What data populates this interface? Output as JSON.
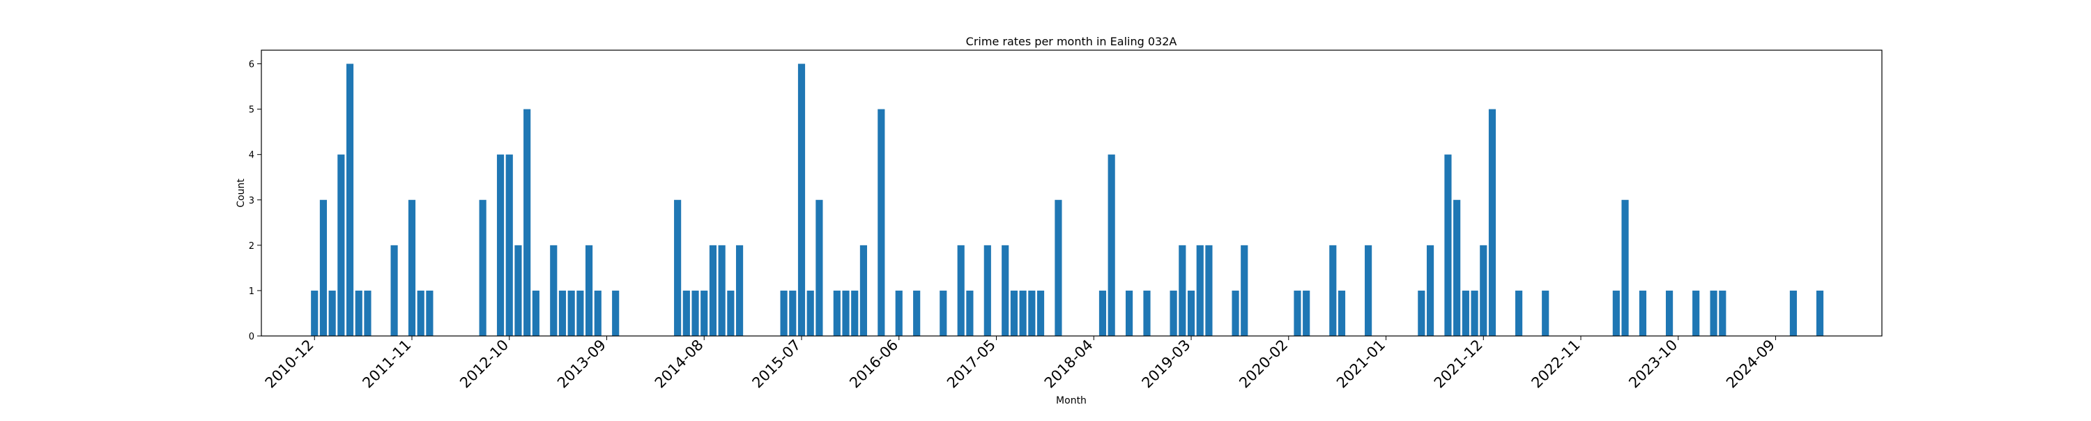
{
  "chart_data": {
    "type": "bar",
    "title": "Crime rates per month in Ealing 032A",
    "xlabel": "Month",
    "ylabel": "Count",
    "ylim": [
      0,
      6.3
    ],
    "yticks": [
      0,
      1,
      2,
      3,
      4,
      5,
      6
    ],
    "xtick_labels": [
      "2010-12",
      "2011-11",
      "2012-10",
      "2013-09",
      "2014-08",
      "2015-07",
      "2016-06",
      "2017-05",
      "2018-04",
      "2019-03",
      "2020-02",
      "2021-01",
      "2021-12",
      "2022-11",
      "2023-10",
      "2024-09"
    ],
    "xtick_rotation": 45,
    "grid": false,
    "bar_color": "#1f77b4",
    "categories": [
      "2010-12",
      "2011-01",
      "2011-02",
      "2011-03",
      "2011-04",
      "2011-05",
      "2011-06",
      "2011-09",
      "2011-11",
      "2011-12",
      "2012-01",
      "2012-07",
      "2012-09",
      "2012-10",
      "2012-11",
      "2012-12",
      "2013-01",
      "2013-03",
      "2013-04",
      "2013-05",
      "2013-06",
      "2013-07",
      "2013-08",
      "2013-10",
      "2014-05",
      "2014-06",
      "2014-07",
      "2014-08",
      "2014-09",
      "2014-10",
      "2014-11",
      "2014-12",
      "2015-05",
      "2015-06",
      "2015-07",
      "2015-08",
      "2015-09",
      "2015-11",
      "2015-12",
      "2016-01",
      "2016-02",
      "2016-04",
      "2016-06",
      "2016-08",
      "2016-11",
      "2017-01",
      "2017-02",
      "2017-04",
      "2017-06",
      "2017-07",
      "2017-08",
      "2017-09",
      "2017-10",
      "2017-12",
      "2018-05",
      "2018-06",
      "2018-08",
      "2018-10",
      "2019-01",
      "2019-02",
      "2019-03",
      "2019-04",
      "2019-05",
      "2019-08",
      "2019-09",
      "2020-03",
      "2020-04",
      "2020-07",
      "2020-08",
      "2020-11",
      "2021-05",
      "2021-06",
      "2021-08",
      "2021-09",
      "2021-10",
      "2021-11",
      "2021-12",
      "2022-01",
      "2022-04",
      "2022-07",
      "2023-03",
      "2023-04",
      "2023-06",
      "2023-09",
      "2023-12",
      "2024-02",
      "2024-03",
      "2024-11",
      "2025-02"
    ],
    "values": [
      1,
      3,
      1,
      4,
      6,
      1,
      1,
      2,
      3,
      1,
      1,
      3,
      4,
      4,
      2,
      5,
      1,
      2,
      1,
      1,
      1,
      2,
      1,
      1,
      3,
      1,
      1,
      1,
      2,
      2,
      1,
      2,
      1,
      1,
      6,
      1,
      3,
      1,
      1,
      1,
      2,
      5,
      1,
      1,
      1,
      2,
      1,
      2,
      2,
      1,
      1,
      1,
      1,
      3,
      1,
      4,
      1,
      1,
      1,
      2,
      1,
      2,
      2,
      1,
      2,
      1,
      1,
      2,
      1,
      2,
      1,
      2,
      4,
      3,
      1,
      1,
      2,
      5,
      1,
      1,
      1,
      3,
      1,
      1,
      1,
      1,
      1,
      1,
      1
    ]
  }
}
